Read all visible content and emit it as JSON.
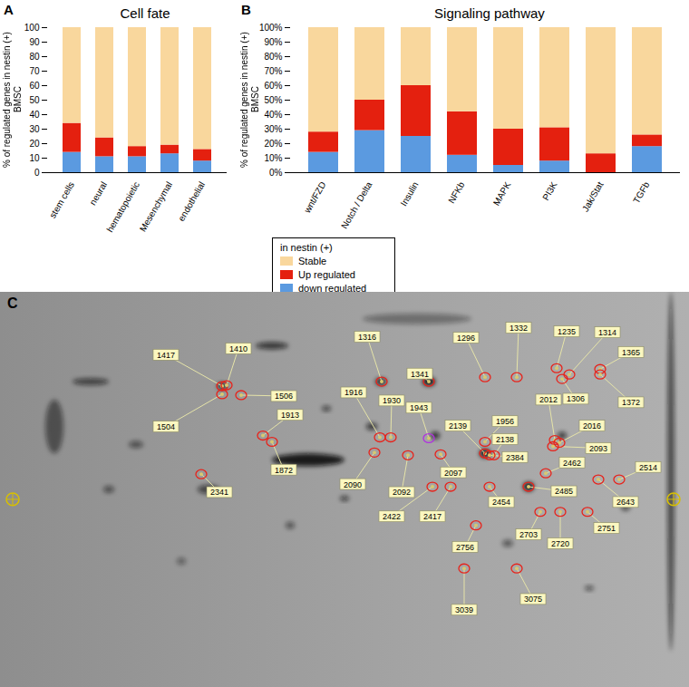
{
  "chart_data": [
    {
      "type": "bar",
      "panel": "A",
      "title": "Cell fate",
      "ylabel": "% of regulated genes in nestin (+) BMSC",
      "stacked": true,
      "categories": [
        "stem cells",
        "neural",
        "hematopoietic",
        "Mesenchymal",
        "endothelial"
      ],
      "series": [
        {
          "name": "down regulated",
          "color": "#5b9ae0",
          "values": [
            14,
            11,
            11,
            13,
            8
          ]
        },
        {
          "name": "Up regulated",
          "color": "#e4200f",
          "values": [
            20,
            13,
            7,
            6,
            8
          ]
        },
        {
          "name": "Stable",
          "color": "#f9d79d",
          "values": [
            66,
            76,
            82,
            81,
            84
          ]
        }
      ],
      "ylim": [
        0,
        100
      ],
      "yticks": [
        0,
        10,
        20,
        30,
        40,
        50,
        60,
        70,
        80,
        90,
        100
      ],
      "legend": "bottom-right",
      "legend_title": "in nestin (+)"
    },
    {
      "type": "bar",
      "panel": "B",
      "title": "Signaling pathway",
      "ylabel": "% of regulated genes in nestin (+) BMSC",
      "stacked": true,
      "categories": [
        "wnt/FZD",
        "Notch / Delta",
        "Insulin",
        "NFKb",
        "MAPK",
        "PI3K",
        "Jak/Stat",
        "TGFb"
      ],
      "series": [
        {
          "name": "down regulated",
          "color": "#5b9ae0",
          "values": [
            14,
            29,
            25,
            12,
            5,
            8,
            0,
            18
          ]
        },
        {
          "name": "Up regulated",
          "color": "#e4200f",
          "values": [
            14,
            21,
            35,
            30,
            25,
            23,
            13,
            8
          ]
        },
        {
          "name": "Stable",
          "color": "#f9d79d",
          "values": [
            72,
            50,
            40,
            58,
            70,
            69,
            87,
            74
          ]
        }
      ],
      "ylim": [
        0,
        100
      ],
      "yticks": [
        {
          "value": 0,
          "label": "0%"
        },
        {
          "value": 10,
          "label": "10%"
        },
        {
          "value": 20,
          "label": "20%"
        },
        {
          "value": 30,
          "label": "30%"
        },
        {
          "value": 40,
          "label": "40%"
        },
        {
          "value": 50,
          "label": "50%"
        },
        {
          "value": 60,
          "label": "60%"
        },
        {
          "value": 70,
          "label": "70%"
        },
        {
          "value": 80,
          "label": "80%"
        },
        {
          "value": 90,
          "label": "90%"
        },
        {
          "value": 100,
          "label": "100%"
        }
      ]
    }
  ],
  "gel": {
    "panel": "C",
    "highlight": "1943",
    "spots": [
      "1417",
      "1410",
      "1506",
      "1504",
      "1316",
      "1341",
      "1296",
      "1332",
      "1235",
      "1314",
      "1365",
      "1372",
      "1306",
      "1916",
      "1930",
      "1943",
      "1913",
      "1872",
      "2341",
      "2090",
      "2092",
      "2139",
      "1956",
      "2138",
      "2012",
      "2016",
      "2093",
      "2514",
      "2097",
      "2384",
      "2462",
      "2485",
      "2643",
      "2422",
      "2417",
      "2454",
      "2703",
      "2720",
      "2751",
      "2756",
      "3039",
      "3075"
    ]
  }
}
